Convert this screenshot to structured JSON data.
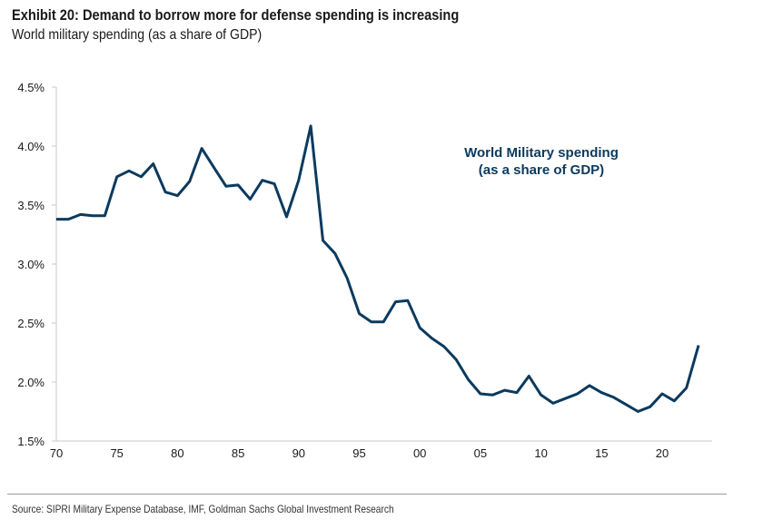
{
  "header": {
    "title": "Exhibit 20: Demand to borrow more for defense spending is increasing",
    "subtitle": "World military spending (as a share of GDP)"
  },
  "footer": {
    "source": "Source: SIPRI Military Expense Database, IMF, Goldman Sachs Global Investment Research"
  },
  "chart_data": {
    "type": "line",
    "title": "Exhibit 20: Demand to borrow more for defense spending is increasing",
    "subtitle": "World military spending (as a share of GDP)",
    "xlabel": "",
    "ylabel": "",
    "ylim": [
      1.5,
      4.5
    ],
    "xlim": [
      1970,
      2024
    ],
    "grid": false,
    "line_color": "#0b3a5e",
    "y_ticks": [
      "1.5%",
      "2.0%",
      "2.5%",
      "3.0%",
      "3.5%",
      "4.0%",
      "4.5%"
    ],
    "x_ticks": [
      "70",
      "75",
      "80",
      "85",
      "90",
      "95",
      "00",
      "05",
      "10",
      "15",
      "20"
    ],
    "annotation": [
      "World Military spending",
      "(as a share of GDP)"
    ],
    "x": [
      1970,
      1971,
      1972,
      1973,
      1974,
      1975,
      1976,
      1977,
      1978,
      1979,
      1980,
      1981,
      1982,
      1983,
      1984,
      1985,
      1986,
      1987,
      1988,
      1989,
      1990,
      1991,
      1992,
      1993,
      1994,
      1995,
      1996,
      1997,
      1998,
      1999,
      2000,
      2001,
      2002,
      2003,
      2004,
      2005,
      2006,
      2007,
      2008,
      2009,
      2010,
      2011,
      2012,
      2013,
      2014,
      2015,
      2016,
      2017,
      2018,
      2019,
      2020,
      2021,
      2022,
      2023
    ],
    "values": [
      3.38,
      3.38,
      3.42,
      3.41,
      3.41,
      3.74,
      3.79,
      3.74,
      3.85,
      3.61,
      3.58,
      3.7,
      3.98,
      3.82,
      3.66,
      3.67,
      3.55,
      3.71,
      3.68,
      3.4,
      3.71,
      4.17,
      3.2,
      3.09,
      2.88,
      2.58,
      2.51,
      2.51,
      2.68,
      2.69,
      2.46,
      2.37,
      2.3,
      2.19,
      2.02,
      1.9,
      1.89,
      1.93,
      1.91,
      2.05,
      1.89,
      1.82,
      1.86,
      1.9,
      1.97,
      1.91,
      1.87,
      1.81,
      1.75,
      1.79,
      1.9,
      1.84,
      1.95,
      2.31
    ]
  }
}
